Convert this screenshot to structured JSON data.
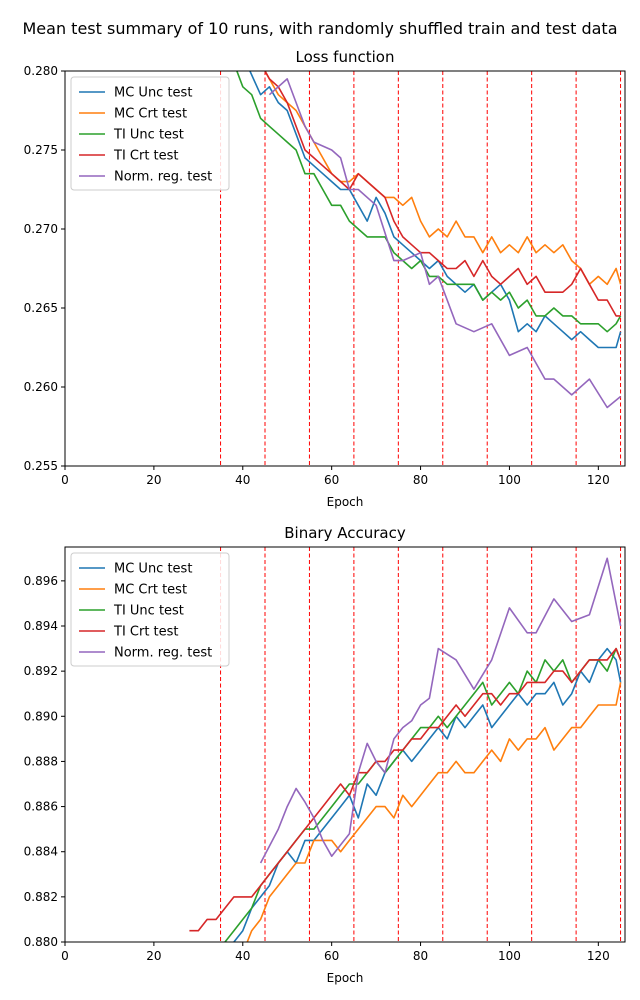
{
  "suptitle": "Mean test summary of 10 runs, with randomly shuffled train and test data",
  "colors": {
    "mc_unc": "#1f77b4",
    "mc_crt": "#ff7f0e",
    "ti_unc": "#2ca02c",
    "ti_crt": "#d62728",
    "norm_reg": "#9467bd",
    "vline": "#ff0000"
  },
  "chart_data": [
    {
      "type": "line",
      "title": "Loss function",
      "xlabel": "Epoch",
      "ylabel": "",
      "xlim": [
        0,
        126
      ],
      "ylim": [
        0.255,
        0.28
      ],
      "xticks": [
        0,
        20,
        40,
        60,
        80,
        100,
        120
      ],
      "yticks": [
        0.255,
        0.26,
        0.265,
        0.27,
        0.275,
        0.28
      ],
      "ytick_labels": [
        "0.255",
        "0.260",
        "0.265",
        "0.270",
        "0.275",
        "0.280"
      ],
      "grid": false,
      "legend_position": "upper-left",
      "vlines": [
        35,
        45,
        55,
        65,
        75,
        85,
        95,
        105,
        115,
        125
      ],
      "series": [
        {
          "name": "MC Unc test",
          "color_key": "mc_unc",
          "x": [
            38,
            40,
            44,
            46,
            48,
            50,
            52,
            54,
            56,
            58,
            60,
            62,
            64,
            66,
            68,
            70,
            72,
            74,
            76,
            78,
            80,
            82,
            84,
            86,
            88,
            90,
            92,
            94,
            96,
            98,
            100,
            102,
            104,
            106,
            108,
            110,
            112,
            114,
            116,
            118,
            120,
            122,
            124,
            125
          ],
          "y": [
            0.284,
            0.281,
            0.2785,
            0.279,
            0.278,
            0.2775,
            0.276,
            0.2745,
            0.274,
            0.2735,
            0.273,
            0.2725,
            0.2725,
            0.2715,
            0.2705,
            0.272,
            0.271,
            0.2695,
            0.269,
            0.2685,
            0.268,
            0.2675,
            0.268,
            0.267,
            0.2665,
            0.266,
            0.2665,
            0.2655,
            0.266,
            0.2665,
            0.2655,
            0.2635,
            0.264,
            0.2635,
            0.2645,
            0.264,
            0.2635,
            0.263,
            0.2635,
            0.263,
            0.2625,
            0.2625,
            0.2625,
            0.2635
          ]
        },
        {
          "name": "MC Crt test",
          "color_key": "mc_crt",
          "x": [
            42,
            44,
            46,
            48,
            50,
            52,
            54,
            56,
            58,
            60,
            62,
            64,
            66,
            68,
            70,
            72,
            74,
            76,
            78,
            80,
            82,
            84,
            86,
            88,
            90,
            92,
            94,
            96,
            98,
            100,
            102,
            104,
            106,
            108,
            110,
            112,
            114,
            116,
            118,
            120,
            122,
            124,
            125
          ],
          "y": [
            0.2815,
            0.2805,
            0.2795,
            0.2785,
            0.278,
            0.2775,
            0.2765,
            0.2755,
            0.2745,
            0.2735,
            0.273,
            0.273,
            0.2735,
            0.273,
            0.2725,
            0.272,
            0.272,
            0.2715,
            0.272,
            0.2705,
            0.2695,
            0.27,
            0.2695,
            0.2705,
            0.2695,
            0.2695,
            0.2685,
            0.2695,
            0.2685,
            0.269,
            0.2685,
            0.2695,
            0.2685,
            0.269,
            0.2685,
            0.269,
            0.268,
            0.2675,
            0.2665,
            0.267,
            0.2665,
            0.2675,
            0.2665
          ]
        },
        {
          "name": "TI Unc test",
          "color_key": "ti_unc",
          "x": [
            38,
            40,
            42,
            44,
            46,
            48,
            50,
            52,
            54,
            56,
            58,
            60,
            62,
            64,
            66,
            68,
            70,
            72,
            74,
            76,
            78,
            80,
            82,
            84,
            86,
            88,
            90,
            92,
            94,
            96,
            98,
            100,
            102,
            104,
            106,
            108,
            110,
            112,
            114,
            116,
            118,
            120,
            122,
            124,
            125
          ],
          "y": [
            0.2805,
            0.279,
            0.2785,
            0.277,
            0.2765,
            0.276,
            0.2755,
            0.275,
            0.2735,
            0.2735,
            0.2725,
            0.2715,
            0.2715,
            0.2705,
            0.27,
            0.2695,
            0.2695,
            0.2695,
            0.2685,
            0.268,
            0.2675,
            0.268,
            0.267,
            0.267,
            0.2665,
            0.2665,
            0.2665,
            0.2665,
            0.2655,
            0.266,
            0.2655,
            0.266,
            0.265,
            0.2655,
            0.2645,
            0.2645,
            0.265,
            0.2645,
            0.2645,
            0.264,
            0.264,
            0.264,
            0.2635,
            0.264,
            0.2645
          ]
        },
        {
          "name": "TI Crt test",
          "color_key": "ti_crt",
          "x": [
            42,
            44,
            46,
            48,
            50,
            52,
            54,
            56,
            58,
            60,
            62,
            64,
            66,
            68,
            70,
            72,
            74,
            76,
            78,
            80,
            82,
            84,
            86,
            88,
            90,
            92,
            94,
            96,
            98,
            100,
            102,
            104,
            106,
            108,
            110,
            112,
            114,
            116,
            118,
            120,
            122,
            124,
            125
          ],
          "y": [
            0.2815,
            0.2805,
            0.2795,
            0.279,
            0.278,
            0.2765,
            0.275,
            0.2745,
            0.274,
            0.2735,
            0.273,
            0.2725,
            0.2735,
            0.273,
            0.2725,
            0.272,
            0.2705,
            0.2695,
            0.269,
            0.2685,
            0.2685,
            0.268,
            0.2675,
            0.2675,
            0.268,
            0.267,
            0.268,
            0.267,
            0.2665,
            0.267,
            0.2675,
            0.2665,
            0.267,
            0.266,
            0.266,
            0.266,
            0.2665,
            0.2675,
            0.2665,
            0.2655,
            0.2655,
            0.2645,
            0.2645
          ]
        },
        {
          "name": "Norm. reg. test",
          "color_key": "norm_reg",
          "x": [
            46,
            50,
            52,
            54,
            56,
            60,
            62,
            64,
            66,
            70,
            74,
            76,
            80,
            82,
            84,
            88,
            92,
            96,
            100,
            104,
            108,
            110,
            114,
            118,
            122,
            125
          ],
          "y": [
            0.2785,
            0.2795,
            0.278,
            0.2765,
            0.2755,
            0.275,
            0.2745,
            0.2725,
            0.2725,
            0.2715,
            0.268,
            0.268,
            0.2685,
            0.2665,
            0.267,
            0.264,
            0.2635,
            0.264,
            0.262,
            0.2625,
            0.2605,
            0.2605,
            0.2595,
            0.2605,
            0.2587,
            0.2594
          ]
        }
      ]
    },
    {
      "type": "line",
      "title": "Binary Accuracy",
      "xlabel": "Epoch",
      "ylabel": "",
      "xlim": [
        0,
        126
      ],
      "ylim": [
        0.88,
        0.8975
      ],
      "xticks": [
        0,
        20,
        40,
        60,
        80,
        100,
        120
      ],
      "yticks": [
        0.88,
        0.882,
        0.884,
        0.886,
        0.888,
        0.89,
        0.892,
        0.894,
        0.896
      ],
      "ytick_labels": [
        "0.880",
        "0.882",
        "0.884",
        "0.886",
        "0.888",
        "0.890",
        "0.892",
        "0.894",
        "0.896"
      ],
      "grid": false,
      "legend_position": "upper-left",
      "vlines": [
        35,
        45,
        55,
        65,
        75,
        85,
        95,
        105,
        115,
        125
      ],
      "series": [
        {
          "name": "MC Unc test",
          "color_key": "mc_unc",
          "x": [
            36,
            38,
            40,
            42,
            44,
            46,
            48,
            50,
            52,
            54,
            56,
            58,
            60,
            62,
            64,
            66,
            68,
            70,
            72,
            74,
            76,
            78,
            80,
            82,
            84,
            86,
            88,
            90,
            92,
            94,
            96,
            98,
            100,
            102,
            104,
            106,
            108,
            110,
            112,
            114,
            116,
            118,
            120,
            122,
            124,
            125
          ],
          "y": [
            0.8795,
            0.88,
            0.8805,
            0.8815,
            0.882,
            0.8825,
            0.8835,
            0.884,
            0.8835,
            0.8845,
            0.8845,
            0.885,
            0.8855,
            0.886,
            0.8865,
            0.8855,
            0.887,
            0.8865,
            0.8875,
            0.888,
            0.8885,
            0.888,
            0.8885,
            0.889,
            0.8895,
            0.889,
            0.89,
            0.8895,
            0.89,
            0.8905,
            0.8895,
            0.89,
            0.8905,
            0.891,
            0.8905,
            0.891,
            0.891,
            0.8915,
            0.8905,
            0.891,
            0.892,
            0.8915,
            0.8925,
            0.893,
            0.8925,
            0.8915
          ]
        },
        {
          "name": "MC Crt test",
          "color_key": "mc_crt",
          "x": [
            40,
            42,
            44,
            46,
            48,
            50,
            52,
            54,
            56,
            58,
            60,
            62,
            64,
            66,
            68,
            70,
            72,
            74,
            76,
            78,
            80,
            82,
            84,
            86,
            88,
            90,
            92,
            94,
            96,
            98,
            100,
            102,
            104,
            106,
            108,
            110,
            112,
            114,
            116,
            118,
            120,
            122,
            124,
            125
          ],
          "y": [
            0.8795,
            0.8805,
            0.881,
            0.882,
            0.8825,
            0.883,
            0.8835,
            0.8835,
            0.8845,
            0.8845,
            0.8845,
            0.884,
            0.8845,
            0.885,
            0.8855,
            0.886,
            0.886,
            0.8855,
            0.8865,
            0.886,
            0.8865,
            0.887,
            0.8875,
            0.8875,
            0.888,
            0.8875,
            0.8875,
            0.888,
            0.8885,
            0.888,
            0.889,
            0.8885,
            0.889,
            0.889,
            0.8895,
            0.8885,
            0.889,
            0.8895,
            0.8895,
            0.89,
            0.8905,
            0.8905,
            0.8905,
            0.8915
          ]
        },
        {
          "name": "TI Unc test",
          "color_key": "ti_unc",
          "x": [
            32,
            34,
            36,
            38,
            40,
            42,
            44,
            46,
            48,
            50,
            52,
            54,
            56,
            58,
            60,
            62,
            64,
            66,
            68,
            70,
            72,
            74,
            76,
            78,
            80,
            82,
            84,
            86,
            88,
            90,
            92,
            94,
            96,
            98,
            100,
            102,
            104,
            106,
            108,
            110,
            112,
            114,
            116,
            118,
            120,
            122,
            124,
            125
          ],
          "y": [
            0.88,
            0.8795,
            0.88,
            0.8805,
            0.881,
            0.8815,
            0.8825,
            0.883,
            0.8835,
            0.884,
            0.8845,
            0.885,
            0.885,
            0.8855,
            0.886,
            0.8865,
            0.887,
            0.887,
            0.8875,
            0.888,
            0.8875,
            0.888,
            0.8885,
            0.889,
            0.8895,
            0.8895,
            0.89,
            0.8895,
            0.89,
            0.8905,
            0.891,
            0.8915,
            0.8905,
            0.891,
            0.8915,
            0.891,
            0.892,
            0.8915,
            0.8925,
            0.892,
            0.8925,
            0.8915,
            0.892,
            0.8925,
            0.8925,
            0.892,
            0.893,
            0.8925
          ]
        },
        {
          "name": "TI Crt test",
          "color_key": "ti_crt",
          "x": [
            28,
            30,
            32,
            34,
            36,
            38,
            40,
            42,
            44,
            46,
            48,
            50,
            52,
            54,
            56,
            58,
            60,
            62,
            64,
            66,
            68,
            70,
            72,
            74,
            76,
            78,
            80,
            82,
            84,
            86,
            88,
            90,
            92,
            94,
            96,
            98,
            100,
            102,
            104,
            106,
            108,
            110,
            112,
            114,
            116,
            118,
            120,
            122,
            124,
            125
          ],
          "y": [
            0.8805,
            0.8805,
            0.881,
            0.881,
            0.8815,
            0.882,
            0.882,
            0.882,
            0.8825,
            0.883,
            0.8835,
            0.884,
            0.8845,
            0.885,
            0.8855,
            0.886,
            0.8865,
            0.887,
            0.8865,
            0.8875,
            0.8875,
            0.888,
            0.888,
            0.8885,
            0.8885,
            0.889,
            0.889,
            0.8895,
            0.8895,
            0.89,
            0.8905,
            0.89,
            0.8905,
            0.891,
            0.891,
            0.8905,
            0.891,
            0.891,
            0.8915,
            0.8915,
            0.8915,
            0.892,
            0.892,
            0.8915,
            0.892,
            0.8925,
            0.8925,
            0.8925,
            0.893,
            0.8925
          ]
        },
        {
          "name": "Norm. reg. test",
          "color_key": "norm_reg",
          "x": [
            44,
            48,
            50,
            52,
            54,
            56,
            58,
            60,
            62,
            64,
            66,
            68,
            70,
            72,
            74,
            76,
            78,
            80,
            82,
            84,
            88,
            92,
            96,
            100,
            104,
            106,
            110,
            114,
            118,
            122,
            125
          ],
          "y": [
            0.8835,
            0.885,
            0.886,
            0.8868,
            0.8862,
            0.8855,
            0.8845,
            0.8838,
            0.8843,
            0.8848,
            0.8875,
            0.8888,
            0.888,
            0.8875,
            0.889,
            0.8895,
            0.8898,
            0.8905,
            0.8908,
            0.893,
            0.8925,
            0.8912,
            0.8925,
            0.8948,
            0.8937,
            0.8937,
            0.8952,
            0.8942,
            0.8945,
            0.897,
            0.894
          ]
        }
      ]
    }
  ]
}
